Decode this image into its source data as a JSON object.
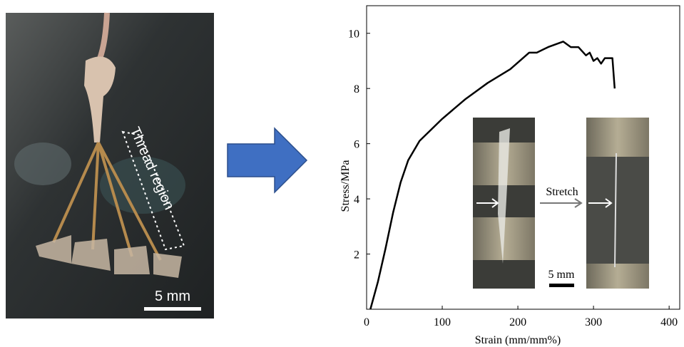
{
  "chart_data": {
    "type": "line",
    "xlabel": "Strain (mm/mm%)",
    "ylabel": "Stress/MPa",
    "x": [
      5,
      8,
      15,
      25,
      35,
      45,
      55,
      70,
      100,
      130,
      160,
      190,
      215,
      225,
      240,
      260,
      270,
      280,
      290,
      295,
      300,
      305,
      310,
      315,
      325,
      328
    ],
    "values": [
      0,
      0.3,
      1,
      2.2,
      3.5,
      4.6,
      5.4,
      6.1,
      6.9,
      7.6,
      8.2,
      8.7,
      9.3,
      9.3,
      9.5,
      9.7,
      9.5,
      9.5,
      9.2,
      9.3,
      9.0,
      9.1,
      8.9,
      9.1,
      9.1,
      8.0
    ],
    "color": "#000000",
    "xlim": [
      0,
      414
    ],
    "ylim": [
      0,
      11
    ],
    "xticks": [
      0,
      100,
      200,
      300,
      400
    ],
    "yticks": [
      2,
      4,
      6,
      8,
      10
    ],
    "annotations": {
      "inset_label": "Stretch",
      "inset_scale": "5 mm"
    }
  },
  "photo": {
    "region_label": "Thread region",
    "scale": "5 mm"
  }
}
